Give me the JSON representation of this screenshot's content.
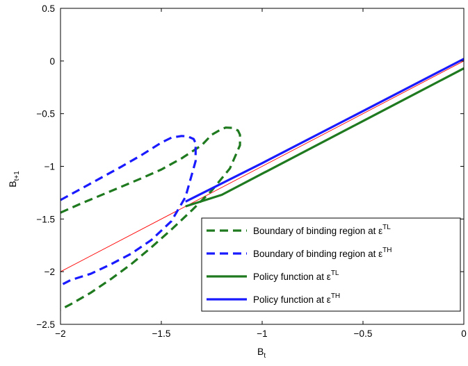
{
  "chart_data": {
    "type": "line",
    "xlabel": "B",
    "xlabel_sub": "t",
    "ylabel": "B",
    "ylabel_sub": "t+1",
    "xlim": [
      -2,
      0
    ],
    "ylim": [
      -2.5,
      0.5
    ],
    "xticks": [
      -2,
      -1.5,
      -1,
      -0.5,
      0
    ],
    "xtick_labels": [
      "−2",
      "−1.5",
      "−1",
      "−0.5",
      "0"
    ],
    "yticks": [
      -2.5,
      -2,
      -1.5,
      -1,
      -0.5,
      0,
      0.5
    ],
    "ytick_labels": [
      "−2.5",
      "−2",
      "−1.5",
      "−1",
      "−0.5",
      "0",
      "0.5"
    ],
    "grid": false,
    "legend_position": "lower-right",
    "series": [
      {
        "name": "Boundary of binding region at ε",
        "name_sup": "TL",
        "color": "#1f7a1f",
        "style": "dashed",
        "x": [
          -2,
          -1.9,
          -1.8,
          -1.7,
          -1.6,
          -1.5,
          -1.4,
          -1.3,
          -1.25,
          -1.2,
          -1.18,
          -1.15,
          -1.12,
          -1.11,
          -1.11,
          -1.16,
          -1.25,
          -1.35,
          -1.45,
          -1.55,
          -1.65,
          -1.75,
          -1.85,
          -1.95,
          -2
        ],
        "y": [
          -1.44,
          -1.355,
          -1.275,
          -1.195,
          -1.115,
          -1.03,
          -0.925,
          -0.8,
          -0.7,
          -0.645,
          -0.632,
          -0.635,
          -0.66,
          -0.7,
          -0.8,
          -1.02,
          -1.23,
          -1.42,
          -1.6,
          -1.77,
          -1.93,
          -2.07,
          -2.2,
          -2.31,
          -2.36
        ]
      },
      {
        "name": "Boundary of binding region at ε",
        "name_sup": "TH",
        "color": "#1a1aff",
        "style": "dashed",
        "x": [
          -2,
          -1.9,
          -1.8,
          -1.7,
          -1.6,
          -1.5,
          -1.45,
          -1.4,
          -1.37,
          -1.34,
          -1.33,
          -1.33,
          -1.38,
          -1.45,
          -1.55,
          -1.65,
          -1.75,
          -1.85,
          -1.95,
          -2
        ],
        "y": [
          -1.32,
          -1.215,
          -1.11,
          -1.005,
          -0.895,
          -0.775,
          -0.728,
          -0.712,
          -0.715,
          -0.74,
          -0.78,
          -0.95,
          -1.29,
          -1.52,
          -1.7,
          -1.83,
          -1.93,
          -2.02,
          -2.08,
          -2.13
        ]
      },
      {
        "name": "Policy function at ε",
        "name_sup": "TL",
        "color": "#1f7a1f",
        "style": "solid",
        "x": [
          -1.38,
          -1.2,
          -1,
          -0.5,
          0
        ],
        "y": [
          -1.38,
          -1.27,
          -1.07,
          -0.57,
          -0.07
        ]
      },
      {
        "name": "Policy function at ε",
        "name_sup": "TH",
        "color": "#1a1aff",
        "style": "solid",
        "x": [
          -1.38,
          -1,
          -0.5,
          0
        ],
        "y": [
          -1.335,
          -0.97,
          -0.475,
          0.02
        ]
      },
      {
        "color": "#ff0000",
        "style": "thin",
        "x": [
          -2,
          0
        ],
        "y": [
          -2,
          0
        ]
      }
    ]
  }
}
